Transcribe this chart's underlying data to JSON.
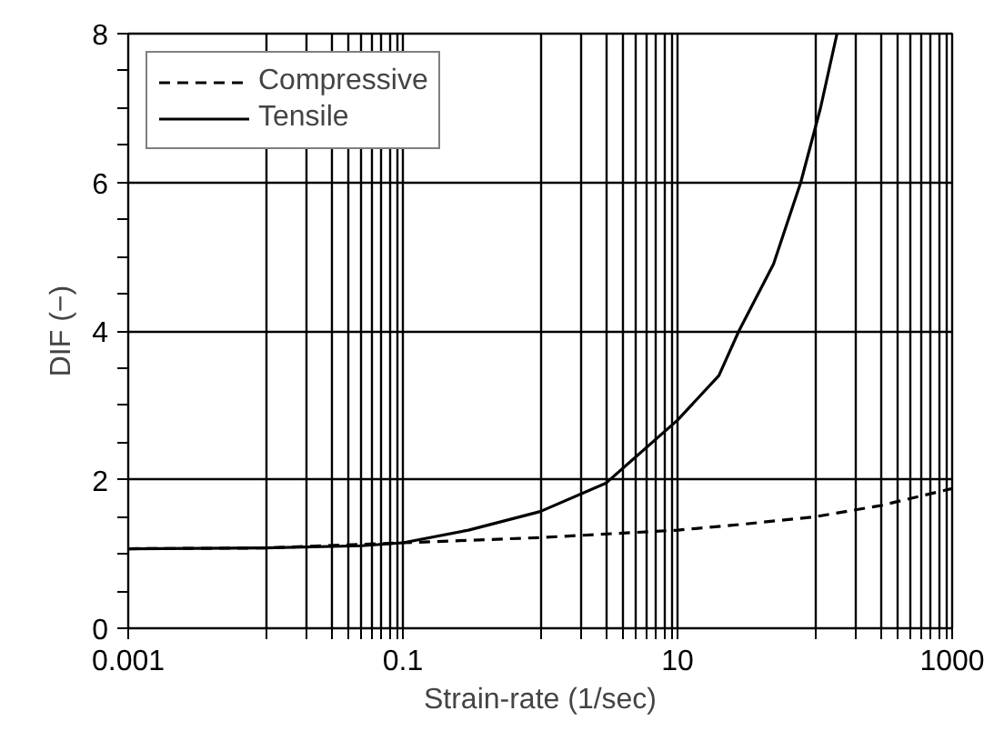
{
  "chart_data": {
    "type": "line",
    "xlabel": "Strain-rate (1/sec)",
    "ylabel": "DIF (−)",
    "log": "x",
    "xlim": [
      0.001,
      1000
    ],
    "xticks": [
      0.001,
      {
        "value": 0.01,
        "label": null
      },
      {
        "value": 0.02,
        "label": null
      },
      {
        "value": 0.03,
        "label": null
      },
      {
        "value": 0.04,
        "label": null
      },
      {
        "value": 0.05,
        "label": null
      },
      {
        "value": 0.06,
        "label": null
      },
      {
        "value": 0.07,
        "label": null
      },
      {
        "value": 0.08,
        "label": null
      },
      {
        "value": 0.09,
        "label": null
      },
      0.1,
      {
        "value": 1,
        "label": null
      },
      {
        "value": 2,
        "label": null
      },
      {
        "value": 3,
        "label": null
      },
      {
        "value": 4,
        "label": null
      },
      {
        "value": 5,
        "label": null
      },
      {
        "value": 6,
        "label": null
      },
      {
        "value": 7,
        "label": null
      },
      {
        "value": 8,
        "label": null
      },
      {
        "value": 9,
        "label": null
      },
      10,
      {
        "value": 100,
        "label": null
      },
      {
        "value": 200,
        "label": null
      },
      {
        "value": 300,
        "label": null
      },
      {
        "value": 400,
        "label": null
      },
      {
        "value": 500,
        "label": null
      },
      {
        "value": 600,
        "label": null
      },
      {
        "value": 700,
        "label": null
      },
      {
        "value": 800,
        "label": null
      },
      {
        "value": 900,
        "label": null
      },
      1000
    ],
    "ylim": [
      0,
      8
    ],
    "yticks": [
      0,
      {
        "value": 0.5,
        "label": null
      },
      {
        "value": 1,
        "label": null
      },
      {
        "value": 1.5,
        "label": null
      },
      2,
      {
        "value": 2.5,
        "label": null
      },
      {
        "value": 3,
        "label": null
      },
      {
        "value": 3.5,
        "label": null
      },
      4,
      {
        "value": 4.5,
        "label": null
      },
      {
        "value": 5,
        "label": null
      },
      {
        "value": 5.5,
        "label": null
      },
      6,
      {
        "value": 6.5,
        "label": null
      },
      {
        "value": 7,
        "label": null
      },
      {
        "value": 7.5,
        "label": null
      },
      8
    ],
    "grid": true,
    "legend": "top left",
    "series": [
      {
        "name": "Compressive",
        "color": "#000000",
        "line_style": "dashed",
        "x": [
          0.001,
          0.01,
          0.1,
          1,
          10,
          30,
          100,
          300,
          1000
        ],
        "values": [
          1.07,
          1.08,
          1.15,
          1.22,
          1.32,
          1.4,
          1.5,
          1.65,
          1.88
        ]
      },
      {
        "name": "Tensile",
        "color": "#000000",
        "line_style": "solid",
        "x": [
          0.001,
          0.01,
          0.05,
          0.1,
          0.3,
          1,
          3,
          10,
          20,
          28,
          50,
          79,
          110,
          145
        ],
        "values": [
          1.07,
          1.08,
          1.11,
          1.15,
          1.32,
          1.57,
          1.95,
          2.8,
          3.4,
          4.0,
          4.9,
          6.0,
          7.0,
          8.0
        ]
      }
    ]
  }
}
